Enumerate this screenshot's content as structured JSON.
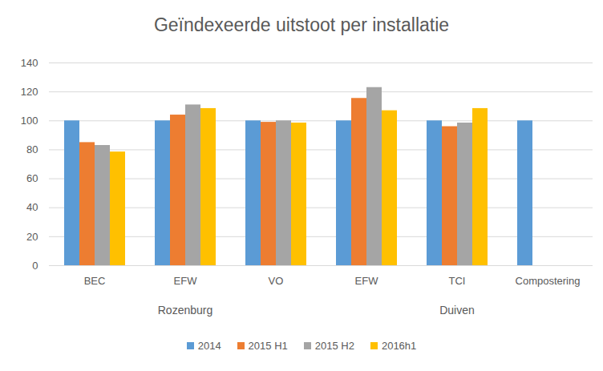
{
  "chart_data": {
    "type": "bar",
    "title": "Geïndexeerde uitstoot per installatie",
    "categories": [
      "BEC",
      "EFW",
      "VO",
      "EFW",
      "TCI",
      "Compostering"
    ],
    "groups": [
      "Rozenburg",
      "Rozenburg",
      "Rozenburg",
      "Duiven",
      "Duiven",
      "Duiven"
    ],
    "series": [
      {
        "name": "2014",
        "color": "#5b9bd5",
        "values": [
          100,
          100,
          100,
          100,
          100,
          100
        ]
      },
      {
        "name": "2015 H1",
        "color": "#ed7d31",
        "values": [
          85,
          104,
          99,
          115.5,
          96,
          null
        ]
      },
      {
        "name": "2015 H2",
        "color": "#a5a5a5",
        "values": [
          83,
          111,
          100,
          123,
          98.5,
          null
        ]
      },
      {
        "name": "2016h1",
        "color": "#ffc000",
        "values": [
          78.5,
          108.5,
          98.5,
          107,
          108.5,
          null
        ]
      }
    ],
    "ylim": [
      0,
      140
    ],
    "yticks": [
      0,
      20,
      40,
      60,
      80,
      100,
      120,
      140
    ],
    "grid": true,
    "legend": "bottom"
  }
}
